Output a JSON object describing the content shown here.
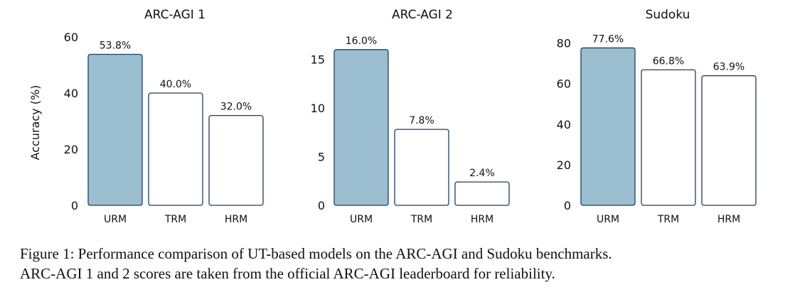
{
  "chart_data": [
    {
      "type": "bar",
      "title": "ARC-AGI 1",
      "ylabel": "Accuracy (%)",
      "categories": [
        "URM",
        "TRM",
        "HRM"
      ],
      "values": [
        53.8,
        40.0,
        32.0
      ],
      "value_labels": [
        "53.8%",
        "40.0%",
        "32.0%"
      ],
      "ylim": [
        0,
        60
      ],
      "yticks": [
        0,
        20,
        40,
        60
      ],
      "highlight_index": 0,
      "grid": false
    },
    {
      "type": "bar",
      "title": "ARC-AGI 2",
      "ylabel": "",
      "categories": [
        "URM",
        "TRM",
        "HRM"
      ],
      "values": [
        16.0,
        7.8,
        2.4
      ],
      "value_labels": [
        "16.0%",
        "7.8%",
        "2.4%"
      ],
      "ylim": [
        0,
        17.3
      ],
      "yticks": [
        0,
        5,
        10,
        15
      ],
      "highlight_index": 0,
      "grid": false
    },
    {
      "type": "bar",
      "title": "Sudoku",
      "ylabel": "",
      "categories": [
        "URM",
        "TRM",
        "HRM"
      ],
      "values": [
        77.6,
        66.8,
        63.9
      ],
      "value_labels": [
        "77.6%",
        "66.8%",
        "63.9%"
      ],
      "ylim": [
        0,
        83
      ],
      "yticks": [
        0,
        20,
        40,
        60,
        80
      ],
      "highlight_index": 0,
      "grid": false
    }
  ],
  "colors": {
    "highlight_fill": "#9bbfd1",
    "bar_fill": "#ffffff",
    "bar_stroke": "#1f3f5a"
  },
  "caption": {
    "line1": "Figure 1: Performance comparison of UT-based models on the ARC-AGI and Sudoku benchmarks.",
    "line2": "ARC-AGI 1 and 2 scores are taken from the official ARC-AGI leaderboard for reliability."
  }
}
